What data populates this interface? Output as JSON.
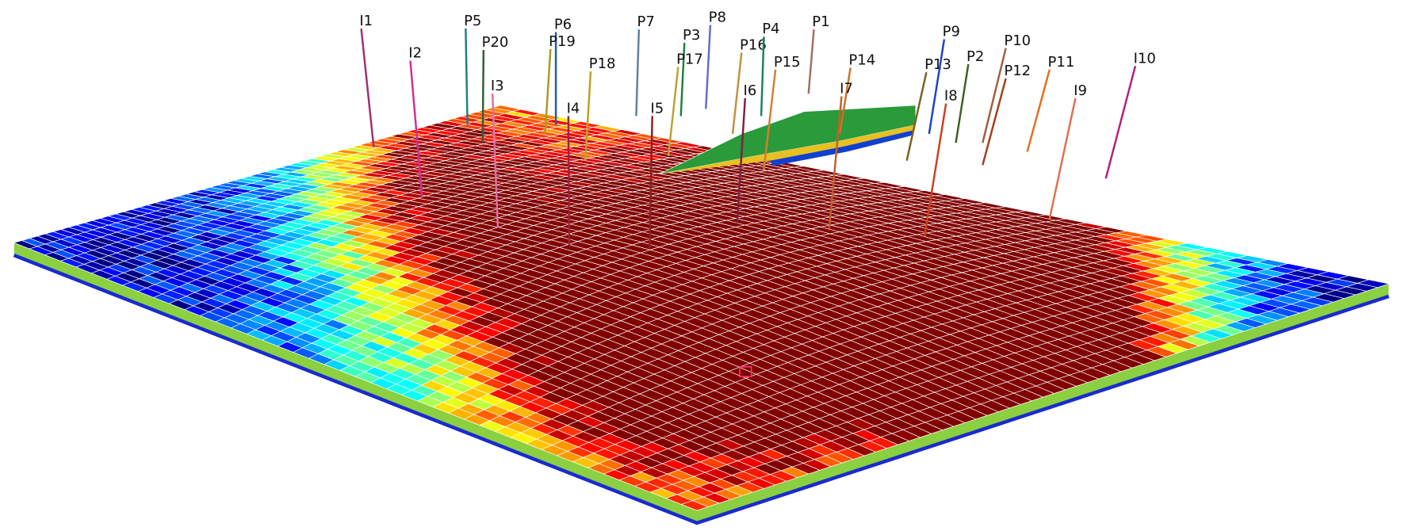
{
  "wells": [
    "I1",
    "P5",
    "P20",
    "I2",
    "P6",
    "P19",
    "P18",
    "I3",
    "I4",
    "P7",
    "P8",
    "P3",
    "P17",
    "I5",
    "P16",
    "P4",
    "P15",
    "I6",
    "P1",
    "P14",
    "I7",
    "P13",
    "P9",
    "P2",
    "I8",
    "P10",
    "P12",
    "P11",
    "I9",
    "I10"
  ]
}
